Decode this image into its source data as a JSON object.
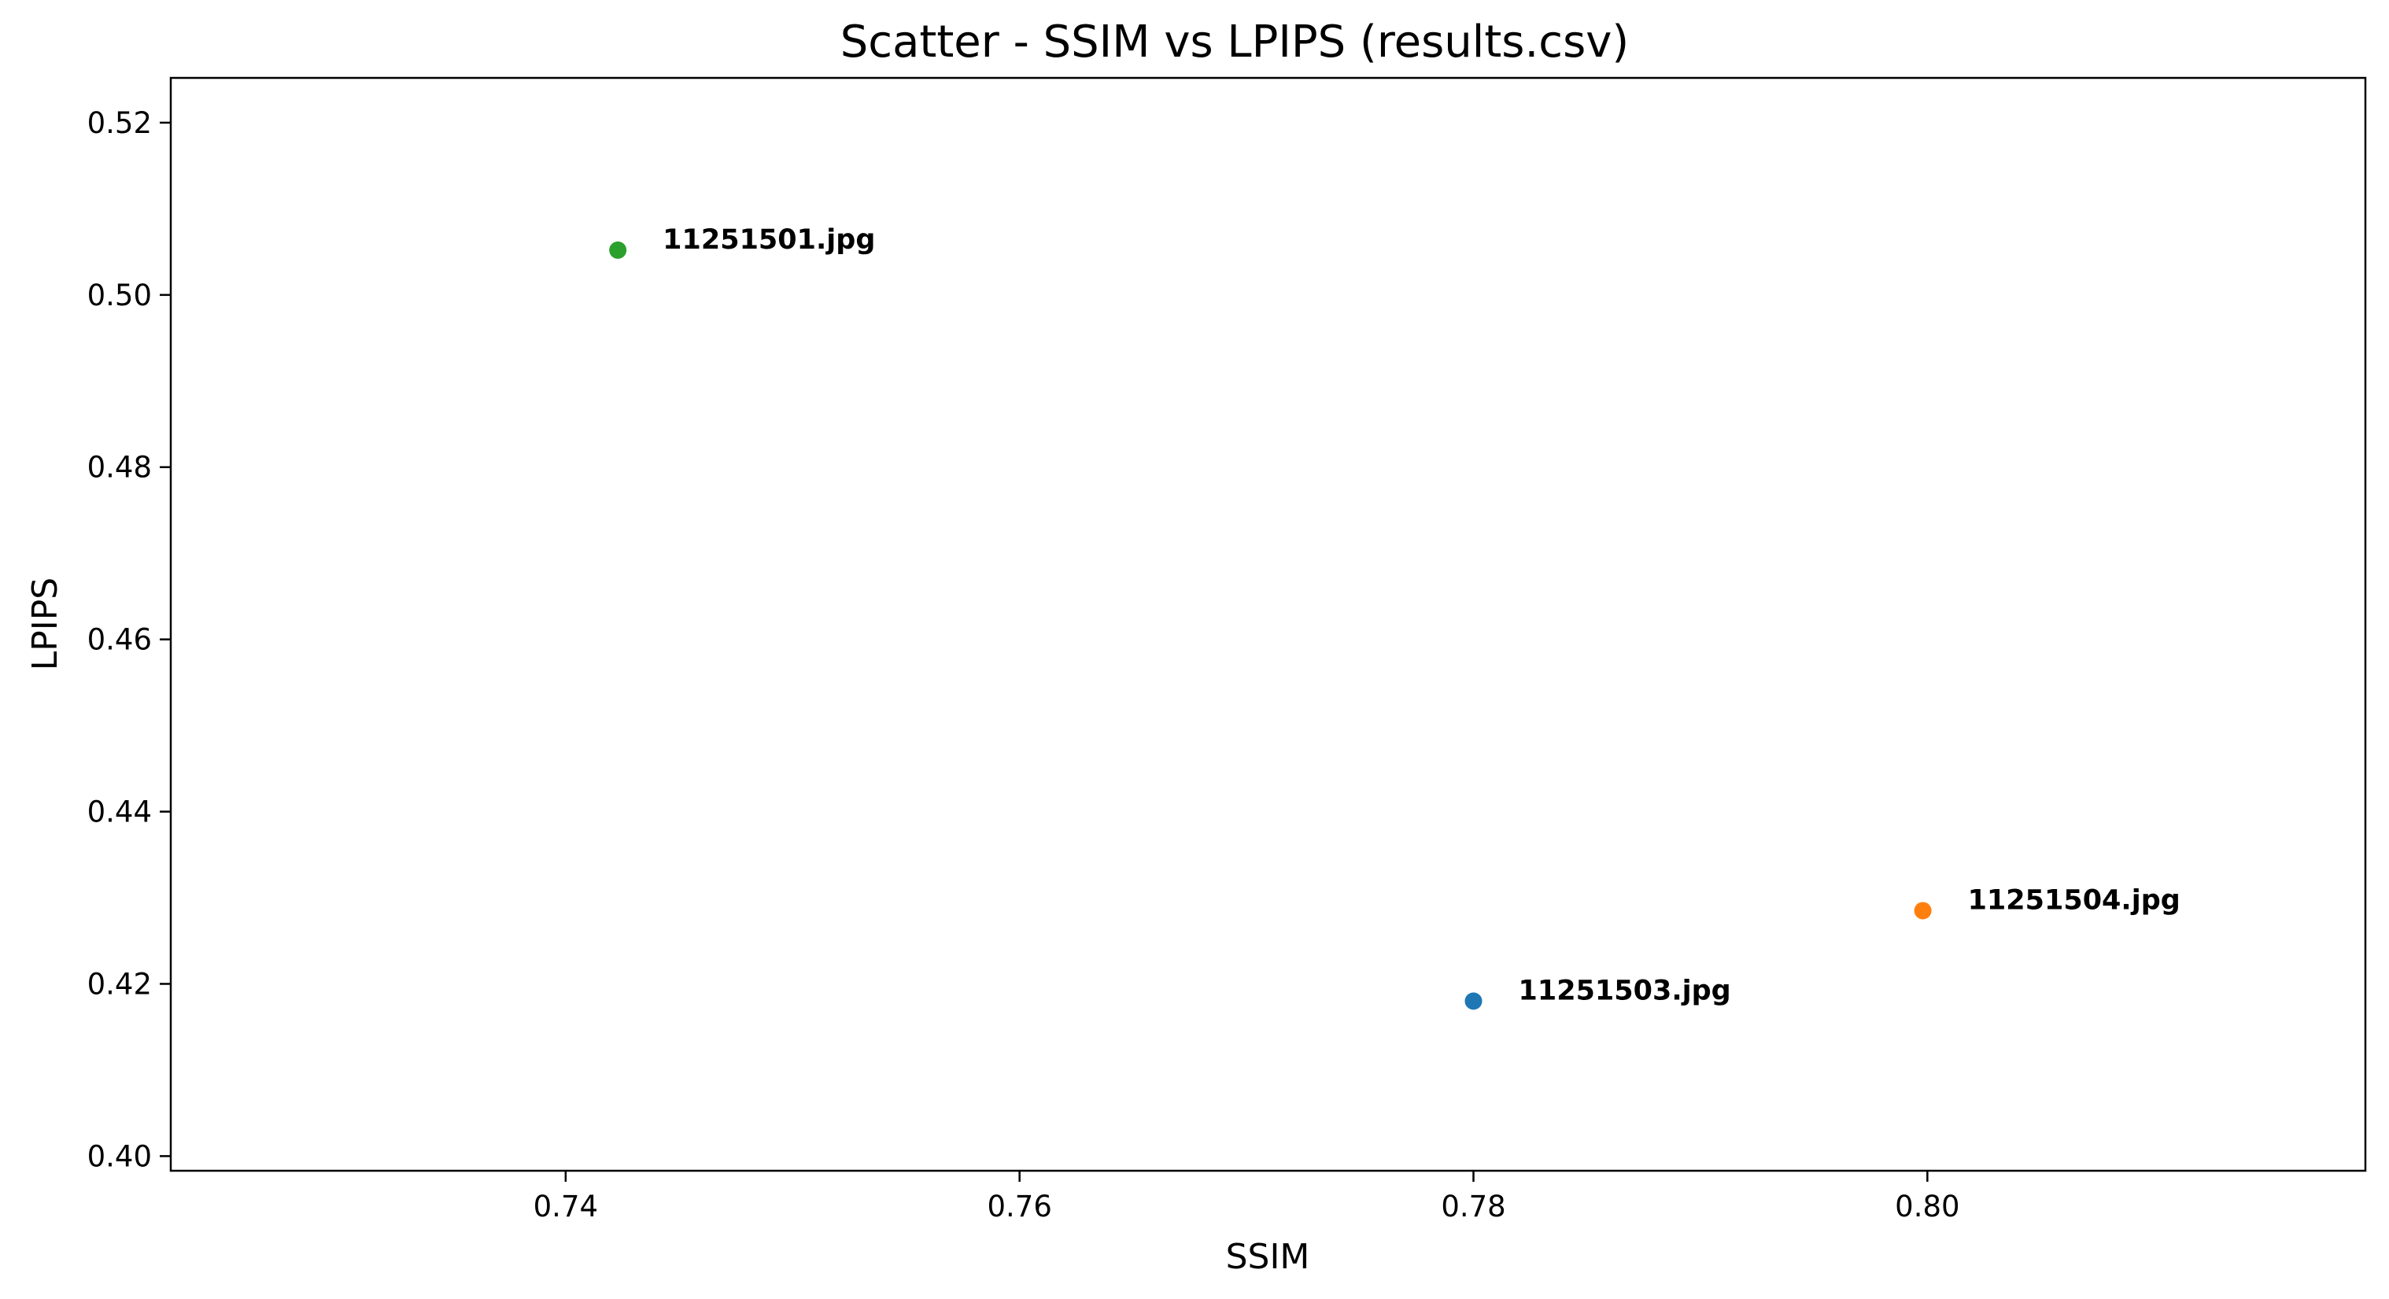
{
  "chart_data": {
    "type": "scatter",
    "title": "Scatter - SSIM vs LPIPS (results.csv)",
    "xlabel": "SSIM",
    "ylabel": "LPIPS",
    "xlim": [
      0.7226,
      0.8193
    ],
    "ylim": [
      0.3983,
      0.5252
    ],
    "xticks": [
      "0.74",
      "0.76",
      "0.78",
      "0.80"
    ],
    "yticks": [
      "0.40",
      "0.42",
      "0.44",
      "0.46",
      "0.48",
      "0.50",
      "0.52"
    ],
    "grid": false,
    "points": [
      {
        "label": "11251503.jpg",
        "x": 0.78,
        "y": 0.418,
        "color": "#1f77b4"
      },
      {
        "label": "11251504.jpg",
        "x": 0.7998,
        "y": 0.4285,
        "color": "#ff7f0e"
      },
      {
        "label": "11251501.jpg",
        "x": 0.7423,
        "y": 0.5052,
        "color": "#2ca02c"
      }
    ]
  }
}
